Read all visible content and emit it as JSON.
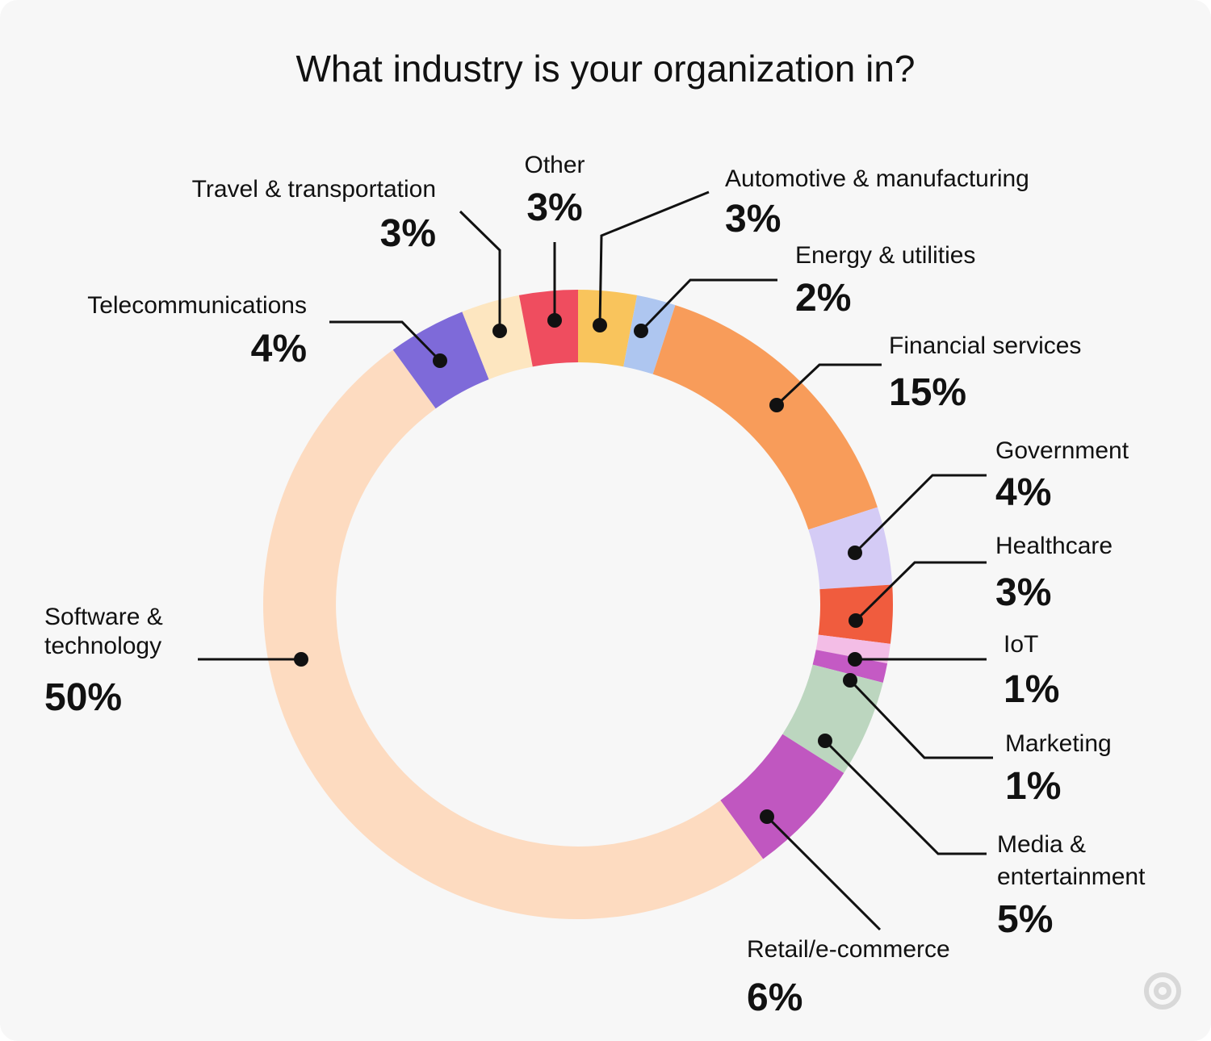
{
  "chart_data": {
    "type": "donut",
    "title": "What industry is your organization in?",
    "categories": [
      "Automotive & manufacturing",
      "Energy & utilities",
      "Financial services",
      "Government",
      "Healthcare",
      "IoT",
      "Marketing",
      "Media & entertainment",
      "Retail/e-commerce",
      "Software & technology",
      "Telecommunications",
      "Travel & transportation",
      "Other"
    ],
    "values": [
      3,
      2,
      15,
      4,
      3,
      1,
      1,
      5,
      6,
      50,
      4,
      3,
      3
    ],
    "value_labels": [
      "3%",
      "2%",
      "15%",
      "4%",
      "3%",
      "1%",
      "1%",
      "5%",
      "6%",
      "50%",
      "4%",
      "3%",
      "3%"
    ],
    "colors": [
      "#f9c45c",
      "#aec6f0",
      "#f89c5a",
      "#d4cbf5",
      "#f05c3e",
      "#f3bde6",
      "#c45ac4",
      "#bcd6bf",
      "#c057c0",
      "#fddbc0",
      "#7e6ad9",
      "#fde6c0",
      "#ef4d5f"
    ]
  }
}
